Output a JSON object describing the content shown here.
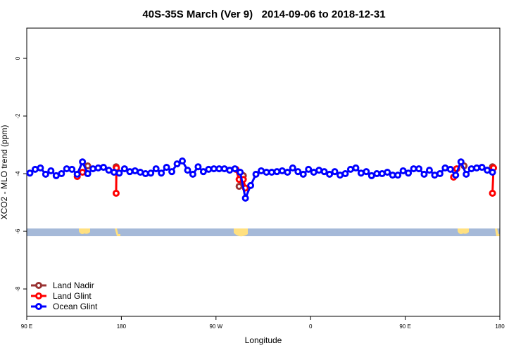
{
  "chart_data": {
    "type": "line",
    "title": "40S-35S March (Ver 9)   2014-09-06 to 2018-12-31",
    "xlabel": "Longitude",
    "ylabel": "XCO2 - MLO trend (ppm)",
    "xlim": [
      90,
      540
    ],
    "ylim": [
      -8.95,
      1.05
    ],
    "xticks": [
      {
        "value": 90,
        "label": "90 E"
      },
      180,
      {
        "value": 270,
        "label": "90 W"
      },
      {
        "value": 360,
        "label": "0"
      },
      {
        "value": 450,
        "label": "90 E"
      },
      {
        "value": 540,
        "label": "180"
      }
    ],
    "yticks": [
      -8,
      -6,
      -4,
      -2,
      0
    ],
    "legend": "bottom-left",
    "series": [
      {
        "name": "Land Nadir",
        "color": "#993333",
        "x": [
          148,
          null,
          175,
          null,
          292,
          296,
          null,
          506,
          null,
          533
        ],
        "values": [
          -3.73,
          null,
          -3.76,
          null,
          -4.44,
          -4.07,
          null,
          -3.73,
          null,
          -3.76
        ]
      },
      {
        "name": "Land Glint",
        "color": "#ff0000",
        "x": [
          138,
          143,
          null,
          175,
          175.3,
          null,
          289,
          292,
          296,
          298,
          null,
          496,
          499,
          null,
          533,
          534
        ],
        "values": [
          -4.1,
          -3.95,
          null,
          -4.68,
          -3.8,
          null,
          -3.85,
          -4.2,
          -4.2,
          -4.5,
          null,
          -4.12,
          -3.83,
          null,
          -4.68,
          -3.8
        ]
      },
      {
        "name": "Ocean Glint",
        "color": "#0000ff",
        "x": [
          93,
          98,
          103,
          108,
          113,
          118,
          123,
          128,
          133,
          138,
          143,
          148,
          153,
          158,
          163,
          168,
          173,
          178,
          183,
          188,
          193,
          198,
          203,
          208,
          213,
          218,
          223,
          228,
          233,
          238,
          243,
          248,
          253,
          258,
          263,
          268,
          273,
          278,
          283,
          288,
          293,
          298,
          303,
          308,
          313,
          318,
          323,
          328,
          333,
          338,
          343,
          348,
          353,
          358,
          363,
          368,
          373,
          378,
          383,
          388,
          393,
          398,
          403,
          408,
          413,
          418,
          423,
          428,
          433,
          438,
          443,
          448,
          453,
          458,
          463,
          468,
          473,
          478,
          483,
          488,
          493,
          498,
          503,
          508,
          513,
          518,
          523,
          528,
          533
        ],
        "values": [
          -3.98,
          -3.85,
          -3.8,
          -4.02,
          -3.9,
          -4.07,
          -4.0,
          -3.83,
          -3.85,
          -4.02,
          -3.59,
          -4.0,
          -3.83,
          -3.8,
          -3.78,
          -3.88,
          -3.95,
          -3.98,
          -3.83,
          -3.93,
          -3.9,
          -3.95,
          -4.0,
          -3.98,
          -3.83,
          -3.98,
          -3.78,
          -3.93,
          -3.66,
          -3.56,
          -3.88,
          -4.02,
          -3.76,
          -3.93,
          -3.85,
          -3.83,
          -3.83,
          -3.83,
          -3.88,
          -3.83,
          -3.95,
          -4.85,
          -4.41,
          -4.02,
          -3.9,
          -3.95,
          -3.95,
          -3.93,
          -3.9,
          -3.95,
          -3.8,
          -3.93,
          -4.02,
          -3.85,
          -3.95,
          -3.88,
          -3.93,
          -4.02,
          -3.93,
          -4.05,
          -4.0,
          -3.85,
          -3.8,
          -3.98,
          -3.93,
          -4.07,
          -4.0,
          -4.0,
          -3.95,
          -4.05,
          -4.05,
          -3.9,
          -3.98,
          -3.83,
          -3.83,
          -4.02,
          -3.88,
          -4.05,
          -4.0,
          -3.8,
          -3.85,
          -4.05,
          -3.59,
          -4.02,
          -3.83,
          -3.8,
          -3.78,
          -3.88,
          -3.95
        ]
      }
    ]
  }
}
